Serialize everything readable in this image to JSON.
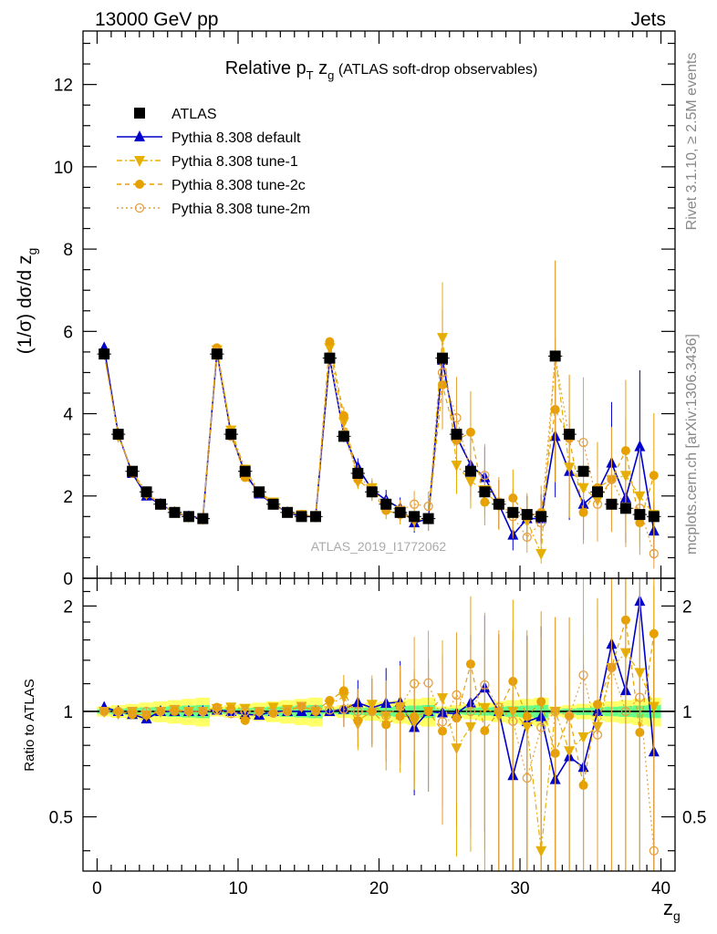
{
  "header": {
    "left": "13000 GeV pp",
    "right": "Jets"
  },
  "side": {
    "rivet": "Rivet 3.1.10, ≥ 2.5M events",
    "mcplots": "mcplots.cern.ch [arXiv:1306.3436]"
  },
  "watermark": "ATLAS_2019_I1772062",
  "chart_data": {
    "type": "line",
    "title": {
      "main": "Relative p",
      "sub": "T",
      "mid": " z",
      "sub2": "g",
      "rest": " (ATLAS soft-drop observables)"
    },
    "ylabel": {
      "pre": "(1/σ) dσ/d z",
      "sub": "g"
    },
    "xlabel": {
      "main": "z",
      "sub": "g"
    },
    "ratio_ylabel": "Ratio to ATLAS",
    "xlim": [
      -1,
      41
    ],
    "ylim": [
      0,
      13.3
    ],
    "ratio_ylim": [
      0.35,
      2.4
    ],
    "ratio_scale": "log",
    "x_ticks": [
      0,
      10,
      20,
      30,
      40
    ],
    "y_ticks": [
      0,
      2,
      4,
      6,
      8,
      10,
      12
    ],
    "ratio_ticks": [
      0.5,
      1,
      2
    ],
    "legend_position": "top-left",
    "x": [
      0.5,
      1.5,
      2.5,
      3.5,
      4.5,
      5.5,
      6.5,
      7.5,
      8.5,
      9.5,
      10.5,
      11.5,
      12.5,
      13.5,
      14.5,
      15.5,
      16.5,
      17.5,
      18.5,
      19.5,
      20.5,
      21.5,
      22.5,
      23.5,
      24.5,
      25.5,
      26.5,
      27.5,
      28.5,
      29.5,
      30.5,
      31.5,
      32.5,
      33.5,
      34.5,
      35.5,
      36.5,
      37.5,
      38.5,
      39.5
    ],
    "series": [
      {
        "name": "ATLAS",
        "key": "atlas",
        "color": "#000000",
        "values": [
          5.45,
          3.5,
          2.6,
          2.1,
          1.8,
          1.6,
          1.5,
          1.45,
          5.45,
          3.5,
          2.6,
          2.1,
          1.8,
          1.6,
          1.5,
          1.5,
          5.35,
          3.45,
          2.55,
          2.1,
          1.8,
          1.6,
          1.5,
          1.45,
          5.35,
          3.5,
          2.6,
          2.1,
          1.8,
          1.6,
          1.55,
          1.5,
          5.4,
          3.5,
          2.6,
          2.1,
          1.8,
          1.7,
          1.55,
          1.5
        ]
      },
      {
        "name": "Pythia 8.308 default",
        "key": "default",
        "color": "#0000cc",
        "values": [
          5.6,
          3.5,
          2.55,
          2.0,
          1.8,
          1.6,
          1.5,
          1.45,
          5.5,
          3.5,
          2.55,
          2.05,
          1.8,
          1.6,
          1.5,
          1.5,
          5.35,
          3.5,
          2.7,
          2.15,
          1.9,
          1.7,
          1.35,
          1.45,
          5.3,
          3.45,
          2.75,
          2.45,
          1.8,
          1.05,
          1.45,
          1.45,
          3.45,
          2.6,
          1.8,
          2.1,
          2.8,
          1.95,
          3.2,
          1.15
        ]
      },
      {
        "name": "Pythia 8.308 tune-1",
        "key": "tune1",
        "color": "#e6b000",
        "values": [
          5.45,
          3.45,
          2.6,
          2.05,
          1.8,
          1.62,
          1.5,
          1.45,
          5.55,
          3.6,
          2.65,
          2.1,
          1.85,
          1.62,
          1.55,
          1.5,
          5.6,
          3.8,
          2.35,
          2.2,
          1.75,
          1.65,
          1.4,
          1.45,
          5.85,
          2.75,
          2.35,
          2.15,
          1.75,
          1.6,
          1.4,
          0.6,
          5.4,
          2.7,
          2.2,
          1.9,
          2.4,
          2.5,
          2.0,
          1.55
        ]
      },
      {
        "name": "Pythia 8.308 tune-2c",
        "key": "tune2c",
        "color": "#e6a000",
        "values": [
          5.45,
          3.5,
          2.55,
          2.05,
          1.8,
          1.6,
          1.5,
          1.45,
          5.6,
          3.55,
          2.45,
          2.1,
          1.78,
          1.6,
          1.55,
          1.5,
          5.75,
          3.95,
          2.4,
          2.1,
          1.65,
          1.55,
          1.45,
          1.45,
          4.7,
          3.35,
          3.55,
          1.85,
          1.8,
          1.95,
          1.5,
          1.6,
          4.1,
          3.4,
          1.6,
          2.2,
          2.4,
          3.1,
          1.35,
          2.5
        ]
      },
      {
        "name": "Pythia 8.308 tune-2m",
        "key": "tune2m",
        "color": "#e6a040",
        "values": [
          5.45,
          3.5,
          2.6,
          2.1,
          1.8,
          1.62,
          1.5,
          1.45,
          5.5,
          3.45,
          2.6,
          2.1,
          1.78,
          1.6,
          1.55,
          1.52,
          5.4,
          3.5,
          2.55,
          2.1,
          1.75,
          1.65,
          1.8,
          1.75,
          5.0,
          3.9,
          2.6,
          2.5,
          1.85,
          1.5,
          1.0,
          1.35,
          5.4,
          3.4,
          3.3,
          1.8,
          2.4,
          1.7,
          1.7,
          0.6
        ]
      }
    ],
    "ratio_band": "#ffff66, #66ff88"
  }
}
